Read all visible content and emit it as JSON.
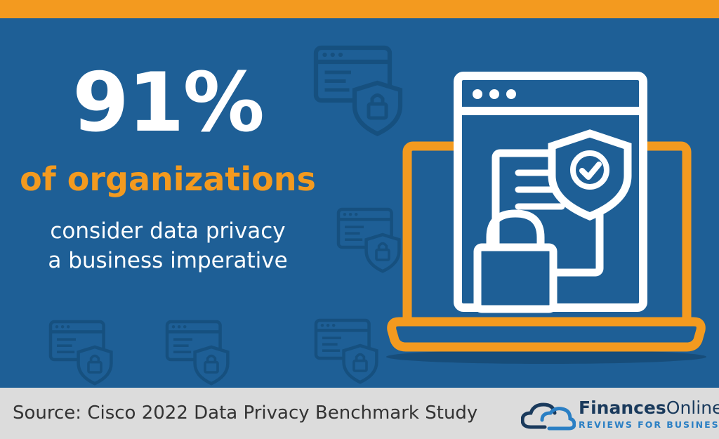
{
  "stat": {
    "number": "91%",
    "subject": "of organizations",
    "description_lines": [
      "consider data privacy",
      "a business imperative"
    ]
  },
  "footer": {
    "source": "Source: Cisco 2022 Data Privacy Benchmark Study"
  },
  "brand": {
    "name_part1": "Finances",
    "name_part2": "Online",
    "tagline": "REVIEWS FOR BUSINESS"
  },
  "colors": {
    "background": "#1e5f96",
    "accent_orange": "#f39a1f",
    "white": "#ffffff",
    "footer_bg": "#dcdcdc",
    "brand_dark": "#1a3a5c",
    "brand_blue": "#2a7fc4"
  },
  "icons": {
    "background_pattern": "browser-window-lock-shield-icon",
    "main_illustration": "laptop-secure-document-icon",
    "logo": "cloud-logo-icon"
  }
}
